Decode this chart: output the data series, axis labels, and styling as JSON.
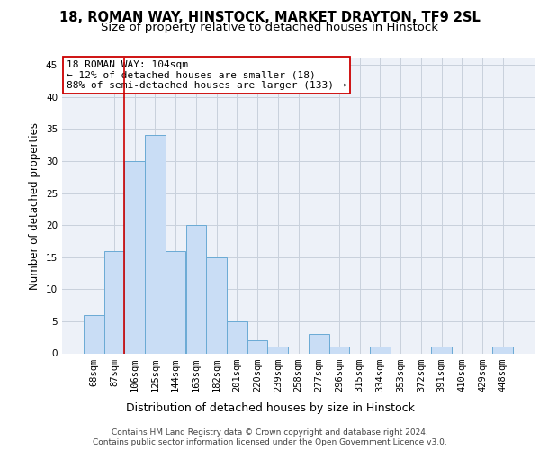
{
  "title1": "18, ROMAN WAY, HINSTOCK, MARKET DRAYTON, TF9 2SL",
  "title2": "Size of property relative to detached houses in Hinstock",
  "xlabel": "Distribution of detached houses by size in Hinstock",
  "ylabel": "Number of detached properties",
  "bar_values": [
    6,
    16,
    30,
    34,
    16,
    20,
    15,
    5,
    2,
    1,
    0,
    3,
    1,
    0,
    1,
    0,
    0,
    1,
    0,
    0,
    1
  ],
  "bar_labels": [
    "68sqm",
    "87sqm",
    "106sqm",
    "125sqm",
    "144sqm",
    "163sqm",
    "182sqm",
    "201sqm",
    "220sqm",
    "239sqm",
    "258sqm",
    "277sqm",
    "296sqm",
    "315sqm",
    "334sqm",
    "353sqm",
    "372sqm",
    "391sqm",
    "410sqm",
    "429sqm",
    "448sqm"
  ],
  "bar_color": "#c9ddf5",
  "bar_edge_color": "#6aaad4",
  "vline_x": 1.5,
  "vline_color": "#cc0000",
  "annotation_text": "18 ROMAN WAY: 104sqm\n← 12% of detached houses are smaller (18)\n88% of semi-detached houses are larger (133) →",
  "annotation_box_color": "#ffffff",
  "annotation_box_edge": "#cc0000",
  "ylim": [
    0,
    46
  ],
  "yticks": [
    0,
    5,
    10,
    15,
    20,
    25,
    30,
    35,
    40,
    45
  ],
  "grid_color": "#c8d0dc",
  "bg_color": "#edf1f8",
  "footer1": "Contains HM Land Registry data © Crown copyright and database right 2024.",
  "footer2": "Contains public sector information licensed under the Open Government Licence v3.0.",
  "title1_fontsize": 10.5,
  "title2_fontsize": 9.5,
  "xlabel_fontsize": 9,
  "ylabel_fontsize": 8.5,
  "tick_fontsize": 7.5,
  "annotation_fontsize": 8,
  "footer_fontsize": 6.5
}
